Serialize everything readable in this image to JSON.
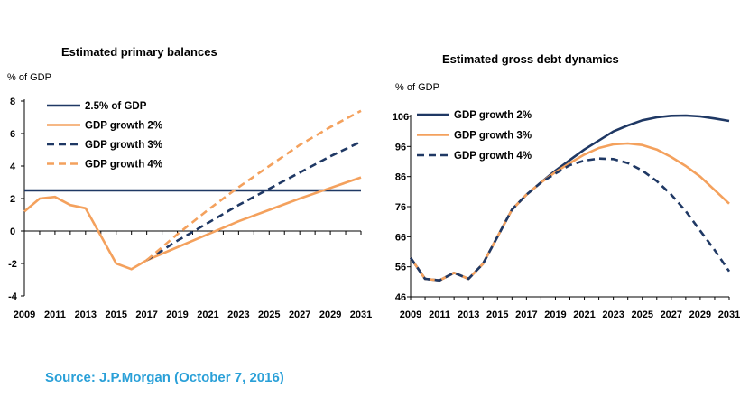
{
  "source": "Source: J.P.Morgan (October 7, 2016)",
  "colors": {
    "navy": "#1f3864",
    "orange": "#f4a15d",
    "source_text": "#2aa0d8"
  },
  "chart_data": [
    {
      "type": "line",
      "title": "Estimated primary balances",
      "ylabel": "% of GDP",
      "xlim": [
        2009,
        2031
      ],
      "ylim": [
        -4,
        8
      ],
      "x_ticks": [
        "2009",
        "2011",
        "2013",
        "2015",
        "2017",
        "2019",
        "2021",
        "2023",
        "2025",
        "2027",
        "2029",
        "2031"
      ],
      "y_ticks": [
        "8",
        "6",
        "4",
        "2",
        "0",
        "-2",
        "-4"
      ],
      "legend_position": "top-left",
      "series": [
        {
          "name": "2.5% of GDP",
          "style": "solid",
          "color": "#1f3864",
          "x": [
            2009,
            2031
          ],
          "y": [
            2.5,
            2.5
          ]
        },
        {
          "name": "GDP growth 2%",
          "style": "solid",
          "color": "#f4a15d",
          "x": [
            2009,
            2010,
            2011,
            2012,
            2013,
            2014,
            2015,
            2016,
            2017,
            2019,
            2021,
            2023,
            2025,
            2027,
            2029,
            2031
          ],
          "y": [
            1.2,
            2.0,
            2.1,
            1.6,
            1.4,
            -0.3,
            -2.0,
            -2.35,
            -1.8,
            -1.0,
            -0.2,
            0.6,
            1.3,
            2.0,
            2.65,
            3.3
          ]
        },
        {
          "name": "GDP growth 3%",
          "style": "dashed",
          "color": "#1f3864",
          "x": [
            2017,
            2019,
            2021,
            2023,
            2025,
            2027,
            2029,
            2031
          ],
          "y": [
            -1.8,
            -0.6,
            0.5,
            1.6,
            2.6,
            3.6,
            4.6,
            5.5
          ]
        },
        {
          "name": "GDP growth 4%",
          "style": "dashed",
          "color": "#f4a15d",
          "x": [
            2017,
            2019,
            2021,
            2023,
            2025,
            2027,
            2029,
            2031
          ],
          "y": [
            -1.8,
            -0.2,
            1.3,
            2.7,
            4.0,
            5.3,
            6.4,
            7.4
          ]
        }
      ]
    },
    {
      "type": "line",
      "title": "Estimated gross debt dynamics",
      "ylabel": "% of GDP",
      "xlim": [
        2009,
        2031
      ],
      "ylim": [
        46,
        106
      ],
      "x_ticks": [
        "2009",
        "2011",
        "2013",
        "2015",
        "2017",
        "2019",
        "2021",
        "2023",
        "2025",
        "2027",
        "2029",
        "2031"
      ],
      "y_ticks": [
        "106",
        "96",
        "86",
        "76",
        "66",
        "56",
        "46"
      ],
      "legend_position": "top-left",
      "series": [
        {
          "name": "GDP growth 2%",
          "style": "solid",
          "color": "#1f3864",
          "x": [
            2009,
            2010,
            2011,
            2012,
            2013,
            2014,
            2015,
            2016,
            2017,
            2018,
            2019,
            2020,
            2021,
            2022,
            2023,
            2024,
            2025,
            2026,
            2027,
            2028,
            2029,
            2030,
            2031
          ],
          "y": [
            59,
            52,
            51.5,
            54,
            52,
            57,
            66,
            75,
            80,
            84,
            88,
            91.5,
            95,
            98,
            101,
            103,
            104.7,
            105.7,
            106.2,
            106.3,
            106,
            105.3,
            104.5
          ]
        },
        {
          "name": "GDP growth 3%",
          "style": "solid",
          "color": "#f4a15d",
          "x": [
            2009,
            2010,
            2011,
            2012,
            2013,
            2014,
            2015,
            2016,
            2017,
            2018,
            2019,
            2020,
            2021,
            2022,
            2023,
            2024,
            2025,
            2026,
            2027,
            2028,
            2029,
            2030,
            2031
          ],
          "y": [
            59,
            52,
            51.5,
            54,
            52,
            57,
            66,
            75,
            80,
            84,
            87.5,
            90.5,
            93.3,
            95.5,
            96.7,
            97,
            96.5,
            95,
            92.5,
            89.5,
            86,
            81.5,
            77
          ]
        },
        {
          "name": "GDP growth 4%",
          "style": "dashed",
          "color": "#1f3864",
          "x": [
            2009,
            2010,
            2011,
            2012,
            2013,
            2014,
            2015,
            2016,
            2017,
            2018,
            2019,
            2020,
            2021,
            2022,
            2023,
            2024,
            2025,
            2026,
            2027,
            2028,
            2029,
            2030,
            2031
          ],
          "y": [
            59,
            52,
            51.5,
            54,
            52,
            57,
            66,
            75,
            80,
            84,
            87,
            89.8,
            91.3,
            92,
            91.8,
            90.5,
            88,
            84.5,
            80,
            74.5,
            68,
            61.5,
            54.5
          ]
        }
      ]
    }
  ]
}
